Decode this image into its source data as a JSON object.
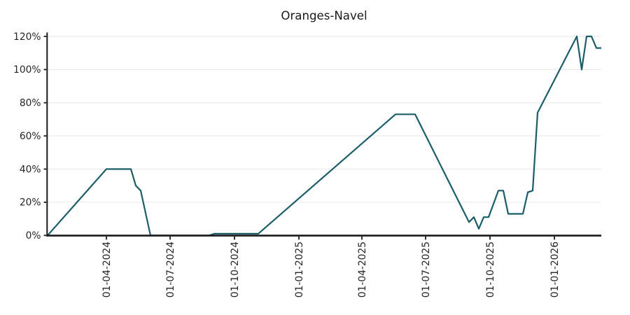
{
  "figure": {
    "background": "#ffffff",
    "text_color": "#262626",
    "axis_color": "#1a1a1a",
    "grid_color": "#ececec"
  },
  "chart_data": {
    "type": "line",
    "title": "Oranges-Navel",
    "xlabel": "",
    "ylabel": "",
    "grid": "horizontal-only",
    "legend": "none",
    "line_color": "#1b5d68",
    "ylim": [
      0,
      122
    ],
    "x_tick_rotation_deg": 90,
    "y_ticks": [
      {
        "label": "0%",
        "value": 0
      },
      {
        "label": "20%",
        "value": 20
      },
      {
        "label": "40%",
        "value": 40
      },
      {
        "label": "60%",
        "value": 60
      },
      {
        "label": "80%",
        "value": 80
      },
      {
        "label": "100%",
        "value": 100
      },
      {
        "label": "120%",
        "value": 120
      }
    ],
    "x_ticks": [
      {
        "label": "01-04-2024",
        "date": "2024-04-01"
      },
      {
        "label": "01-07-2024",
        "date": "2024-07-01"
      },
      {
        "label": "01-10-2024",
        "date": "2024-10-01"
      },
      {
        "label": "01-01-2025",
        "date": "2025-01-01"
      },
      {
        "label": "01-04-2025",
        "date": "2025-04-01"
      },
      {
        "label": "01-07-2025",
        "date": "2025-07-01"
      },
      {
        "label": "01-10-2025",
        "date": "2025-10-01"
      },
      {
        "label": "01-01-2026",
        "date": "2026-01-01"
      }
    ],
    "series": [
      {
        "name": "Oranges-Navel",
        "points": [
          {
            "date": "2024-01-08",
            "value": 0
          },
          {
            "date": "2024-04-01",
            "value": 40
          },
          {
            "date": "2024-05-06",
            "value": 40
          },
          {
            "date": "2024-05-13",
            "value": 30
          },
          {
            "date": "2024-05-20",
            "value": 27
          },
          {
            "date": "2024-06-03",
            "value": 0
          },
          {
            "date": "2024-08-26",
            "value": 0
          },
          {
            "date": "2024-09-02",
            "value": 1
          },
          {
            "date": "2024-11-04",
            "value": 1
          },
          {
            "date": "2025-05-19",
            "value": 73
          },
          {
            "date": "2025-06-16",
            "value": 73
          },
          {
            "date": "2025-09-01",
            "value": 8
          },
          {
            "date": "2025-09-08",
            "value": 11
          },
          {
            "date": "2025-09-15",
            "value": 4
          },
          {
            "date": "2025-09-22",
            "value": 11
          },
          {
            "date": "2025-09-29",
            "value": 11
          },
          {
            "date": "2025-10-13",
            "value": 27
          },
          {
            "date": "2025-10-20",
            "value": 27
          },
          {
            "date": "2025-10-27",
            "value": 13
          },
          {
            "date": "2025-11-17",
            "value": 13
          },
          {
            "date": "2025-11-24",
            "value": 26
          },
          {
            "date": "2025-12-01",
            "value": 27
          },
          {
            "date": "2025-12-08",
            "value": 74
          },
          {
            "date": "2026-02-02",
            "value": 120
          },
          {
            "date": "2026-02-09",
            "value": 100
          },
          {
            "date": "2026-02-16",
            "value": 120
          },
          {
            "date": "2026-02-23",
            "value": 120
          },
          {
            "date": "2026-03-02",
            "value": 113
          },
          {
            "date": "2026-03-09",
            "value": 113
          }
        ]
      }
    ]
  }
}
